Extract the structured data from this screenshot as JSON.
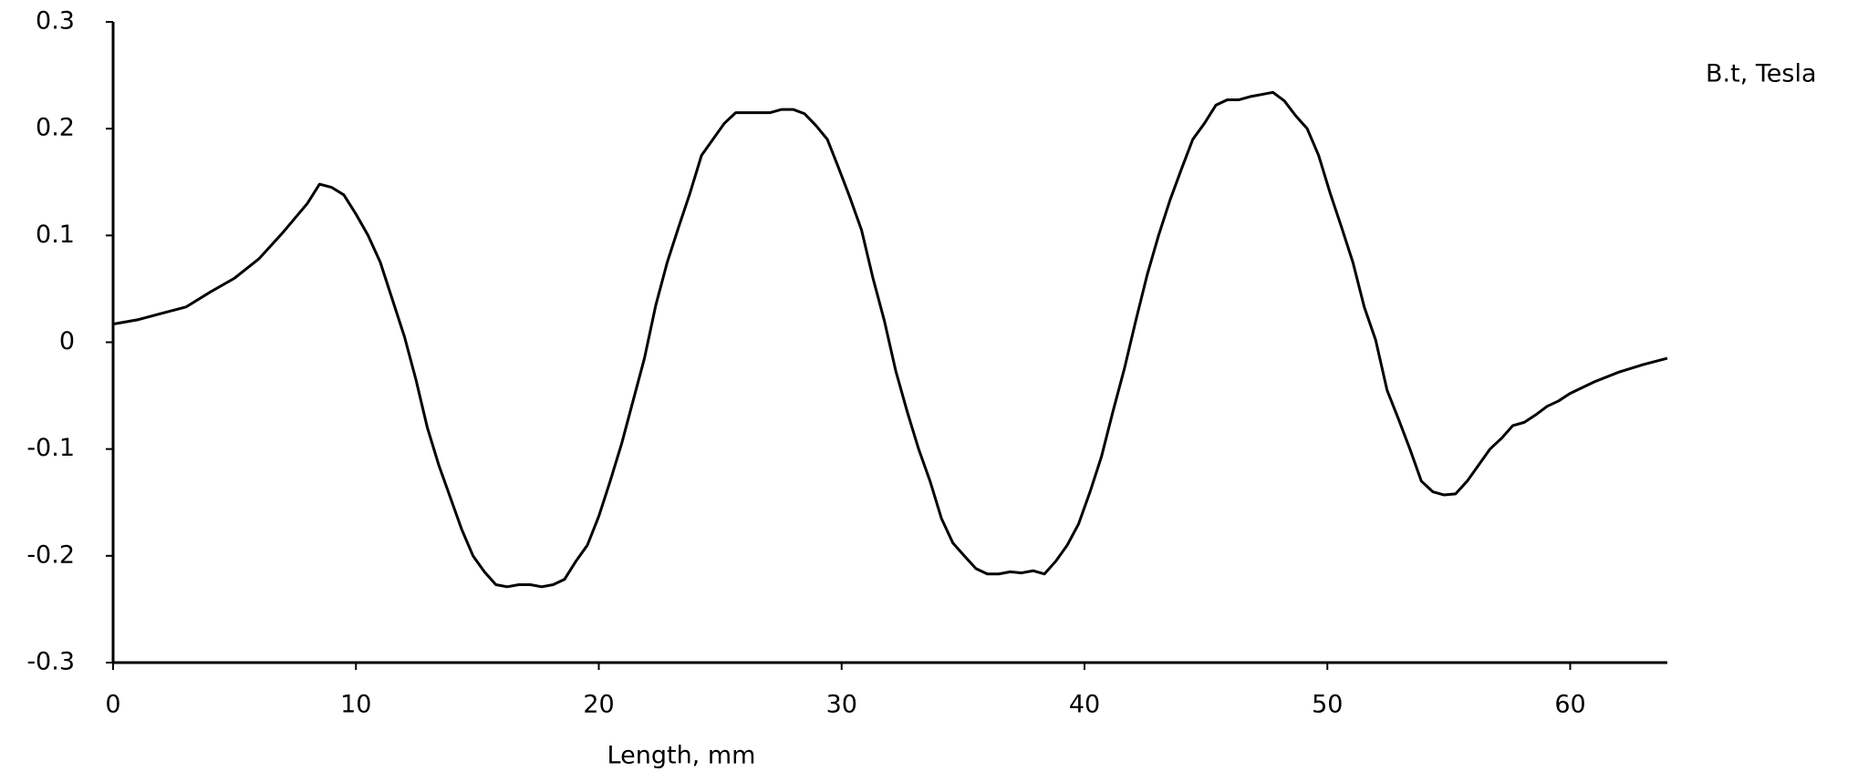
{
  "chart_data": {
    "type": "line",
    "x_label": "Length, mm",
    "x": [
      0,
      1,
      2,
      3,
      4,
      5,
      6,
      7,
      8,
      8.5,
      9,
      9.5,
      10,
      10.5,
      11,
      11.5,
      12,
      12.47,
      12.94,
      13.41,
      13.88,
      14.35,
      14.82,
      15.29,
      15.76,
      16.23,
      16.71,
      17.18,
      17.65,
      18.12,
      18.59,
      19.06,
      19.53,
      20.0,
      20.47,
      20.94,
      21.41,
      21.88,
      22.35,
      22.82,
      23.29,
      23.76,
      24.23,
      24.7,
      25.17,
      25.64,
      26.12,
      26.59,
      27.06,
      27.53,
      28.0,
      28.47,
      28.94,
      29.41,
      29.88,
      30.35,
      30.82,
      31.29,
      31.76,
      32.23,
      32.7,
      33.17,
      33.64,
      34.11,
      34.58,
      35.05,
      35.53,
      36.0,
      36.47,
      36.94,
      37.41,
      37.88,
      38.35,
      38.82,
      39.29,
      39.76,
      40.23,
      40.7,
      41.17,
      41.64,
      42.11,
      42.58,
      43.05,
      43.52,
      43.99,
      44.46,
      44.94,
      45.41,
      45.88,
      46.35,
      46.82,
      47.29,
      47.76,
      48.23,
      48.7,
      49.17,
      49.64,
      50.11,
      50.58,
      51.05,
      51.52,
      51.99,
      52.46,
      52.93,
      53.4,
      53.87,
      54.34,
      54.81,
      55.28,
      55.76,
      56.23,
      56.7,
      57.17,
      57.64,
      58.11,
      58.58,
      59.05,
      59.52,
      59.99,
      61,
      62,
      63,
      64
    ],
    "series": [
      {
        "name": "B.t, Tesla",
        "color": "#000000",
        "values": [
          0.017,
          0.021,
          0.027,
          0.033,
          0.047,
          0.06,
          0.078,
          0.103,
          0.13,
          0.148,
          0.145,
          0.138,
          0.12,
          0.1,
          0.075,
          0.04,
          0.005,
          -0.035,
          -0.08,
          -0.115,
          -0.145,
          -0.175,
          -0.2,
          -0.215,
          -0.227,
          -0.229,
          -0.227,
          -0.227,
          -0.229,
          -0.227,
          -0.222,
          -0.205,
          -0.19,
          -0.163,
          -0.13,
          -0.095,
          -0.055,
          -0.015,
          0.035,
          0.075,
          0.108,
          0.14,
          0.175,
          0.19,
          0.205,
          0.215,
          0.215,
          0.215,
          0.215,
          0.218,
          0.218,
          0.214,
          0.203,
          0.19,
          0.163,
          0.135,
          0.105,
          0.06,
          0.02,
          -0.027,
          -0.065,
          -0.1,
          -0.13,
          -0.165,
          -0.188,
          -0.2,
          -0.212,
          -0.217,
          -0.217,
          -0.215,
          -0.216,
          -0.214,
          -0.217,
          -0.205,
          -0.19,
          -0.17,
          -0.14,
          -0.107,
          -0.065,
          -0.025,
          0.02,
          0.063,
          0.1,
          0.133,
          0.162,
          0.19,
          0.205,
          0.222,
          0.227,
          0.227,
          0.23,
          0.232,
          0.234,
          0.226,
          0.212,
          0.2,
          0.175,
          0.14,
          0.108,
          0.075,
          0.033,
          0.002,
          -0.045,
          -0.072,
          -0.1,
          -0.13,
          -0.14,
          -0.143,
          -0.142,
          -0.13,
          -0.115,
          -0.1,
          -0.09,
          -0.078,
          -0.075,
          -0.068,
          -0.06,
          -0.055,
          -0.048,
          -0.037,
          -0.028,
          -0.021,
          -0.015
        ]
      }
    ],
    "xlim": [
      0,
      64
    ],
    "xticks": [
      0,
      10,
      20,
      30,
      40,
      50,
      60
    ],
    "ylim": [
      -0.3,
      0.3
    ],
    "yticks": [
      -0.3,
      -0.2,
      -0.1,
      0,
      0.1,
      0.2,
      0.3
    ],
    "grid": false,
    "legend": "upper right"
  }
}
